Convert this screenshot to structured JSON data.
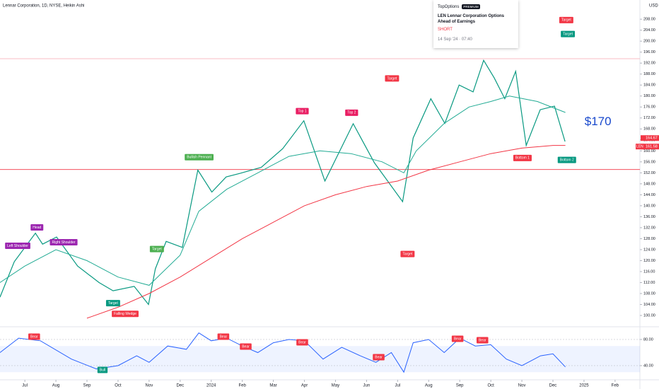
{
  "header": {
    "title": "Lennar Corporation, 1D, NYSE, Heikin Ashi",
    "currency": "USD"
  },
  "news": {
    "source": "TopOptions",
    "badge": "PREMIUM",
    "headline": "LEN Lennar Corporation Options Ahead of Earnings",
    "side": "SHORT",
    "date": "14 Sep '24 · 07:40"
  },
  "chart_data": [
    {
      "type": "line",
      "xlim": [
        -0.8,
        19.8
      ],
      "ylim": [
        96.4,
        215
      ],
      "xticks": [
        {
          "value": 0,
          "label": "Jul"
        },
        {
          "value": 1,
          "label": "Aug"
        },
        {
          "value": 2,
          "label": "Sep"
        },
        {
          "value": 3,
          "label": "Oct"
        },
        {
          "value": 4,
          "label": "Nov"
        },
        {
          "value": 5,
          "label": "Dec"
        },
        {
          "value": 6,
          "label": "2024"
        },
        {
          "value": 7,
          "label": "Feb"
        },
        {
          "value": 8,
          "label": "Mar"
        },
        {
          "value": 9,
          "label": "Apr"
        },
        {
          "value": 10,
          "label": "May"
        },
        {
          "value": 11,
          "label": "Jun"
        },
        {
          "value": 12,
          "label": "Jul"
        },
        {
          "value": 13,
          "label": "Aug"
        },
        {
          "value": 14,
          "label": "Sep"
        },
        {
          "value": 15,
          "label": "Oct"
        },
        {
          "value": 16,
          "label": "Nov"
        },
        {
          "value": 17,
          "label": "Dec"
        },
        {
          "value": 18,
          "label": "2025"
        },
        {
          "value": 19,
          "label": "Feb"
        }
      ],
      "yticks": [
        {
          "value": 208,
          "label": "208.00"
        },
        {
          "value": 204,
          "label": "204.00"
        },
        {
          "value": 200,
          "label": "200.00"
        },
        {
          "value": 196,
          "label": "196.00"
        },
        {
          "value": 192,
          "label": "192.00"
        },
        {
          "value": 188,
          "label": "188.00"
        },
        {
          "value": 184,
          "label": "184.00"
        },
        {
          "value": 180,
          "label": "180.00"
        },
        {
          "value": 176,
          "label": "176.00"
        },
        {
          "value": 172,
          "label": "172.00"
        },
        {
          "value": 168,
          "label": "168.00"
        },
        {
          "value": 164,
          "label": "164.00"
        },
        {
          "value": 160,
          "label": "160.00"
        },
        {
          "value": 156,
          "label": "156.00"
        },
        {
          "value": 152,
          "label": "152.00"
        },
        {
          "value": 148,
          "label": "148.00"
        },
        {
          "value": 144,
          "label": "144.00"
        },
        {
          "value": 140,
          "label": "140.00"
        },
        {
          "value": 136,
          "label": "136.00"
        },
        {
          "value": 132,
          "label": "132.00"
        },
        {
          "value": 128,
          "label": "128.00"
        },
        {
          "value": 124,
          "label": "124.00"
        },
        {
          "value": 120,
          "label": "120.00"
        },
        {
          "value": 116,
          "label": "116.00"
        },
        {
          "value": 112,
          "label": "112.00"
        },
        {
          "value": 108,
          "label": "108.00"
        },
        {
          "value": 104,
          "label": "104.00"
        },
        {
          "value": 100,
          "label": "100.00"
        }
      ],
      "grid": false,
      "series": [
        {
          "color": "#089981",
          "width": 1.2,
          "x": [
            -0.8,
            -0.34,
            0.34,
            0.57,
            1.02,
            1.7,
            2.39,
            2.84,
            3.52,
            3.98,
            4.2,
            4.55,
            5.07,
            5.57,
            6.02,
            6.48,
            6.93,
            7.61,
            8.3,
            8.98,
            9.66,
            10.57,
            11.25,
            12.16,
            12.5,
            13.07,
            13.52,
            13.98,
            14.43,
            14.77,
            15.11,
            15.45,
            15.8,
            16.14,
            16.59,
            17.05,
            17.39
          ],
          "values": [
            106.7,
            119.6,
            130,
            126,
            128.6,
            118,
            112,
            109,
            110.6,
            104,
            117,
            127,
            124.8,
            153,
            145,
            150.5,
            151.8,
            154,
            160.8,
            171,
            149,
            169.9,
            155.7,
            141.5,
            164.7,
            179,
            170,
            184,
            181.5,
            193,
            186.6,
            179,
            189,
            162,
            175,
            176.3,
            163.4
          ]
        },
        {
          "color": "#22ab94",
          "width": 1,
          "x": [
            -0.8,
            0,
            1,
            2,
            3,
            4,
            5,
            5.6,
            6.5,
            7.5,
            8.5,
            9.5,
            10.5,
            11.5,
            12.2,
            12.6,
            13.5,
            14.3,
            15,
            15.6,
            16.5,
            17.4
          ],
          "values": [
            112,
            118,
            124,
            120,
            114,
            111,
            122,
            138,
            146,
            152,
            158,
            160,
            159,
            156,
            152,
            160,
            170,
            176,
            178,
            180,
            178,
            174
          ]
        },
        {
          "color": "#f23645",
          "width": 1,
          "x": [
            2,
            3,
            4,
            5,
            6,
            7,
            8,
            9,
            10,
            11,
            12,
            13,
            14,
            15,
            16,
            17,
            17.4
          ],
          "values": [
            99,
            103,
            108,
            114,
            121,
            128,
            134,
            140,
            144,
            147,
            149,
            153,
            156,
            159,
            161,
            162,
            162
          ]
        }
      ],
      "hlines": [
        {
          "value": 153.2,
          "color": "#f23645"
        },
        {
          "value": 193.6,
          "color": "#f7a9b0"
        }
      ],
      "price_labels": [
        164.67,
        161.58
      ],
      "symbol": "LEN",
      "callout": {
        "text": "$170",
        "x": 18.45,
        "y": 170.5
      },
      "annotations": [
        {
          "text": "Head",
          "x": 0.39,
          "y": 132.1,
          "color": "#9c27b0"
        },
        {
          "text": "Left Shoulder",
          "x": -0.23,
          "y": 125.4,
          "color": "#9c27b0"
        },
        {
          "text": "Right Shoulder",
          "x": 1.25,
          "y": 126.7,
          "color": "#9c27b0"
        },
        {
          "text": "Target",
          "x": 2.84,
          "y": 104.5,
          "color": "#089981"
        },
        {
          "text": "Falling Wedge",
          "x": 3.23,
          "y": 100.6,
          "color": "#f23645"
        },
        {
          "text": "Target",
          "x": 4.25,
          "y": 124.2,
          "color": "#4caf50"
        },
        {
          "text": "Bullish Pennant",
          "x": 5.61,
          "y": 157.7,
          "color": "#4caf50"
        },
        {
          "text": "Top 1",
          "x": 8.93,
          "y": 174.5,
          "color": "#e91e63"
        },
        {
          "text": "Top 2",
          "x": 10.52,
          "y": 173.9,
          "color": "#e91e63"
        },
        {
          "text": "Target",
          "x": 11.82,
          "y": 186.4,
          "color": "#f23645"
        },
        {
          "text": "Target",
          "x": 12.32,
          "y": 122.4,
          "color": "#f23645"
        },
        {
          "text": "Target",
          "x": 17.43,
          "y": 207.7,
          "color": "#f23645"
        },
        {
          "text": "Target",
          "x": 17.48,
          "y": 202.6,
          "color": "#089981"
        },
        {
          "text": "Bottom 1",
          "x": 16.02,
          "y": 157.4,
          "color": "#f23645"
        },
        {
          "text": "Bottom 2",
          "x": 17.45,
          "y": 156.7,
          "color": "#089981"
        }
      ]
    },
    {
      "type": "line",
      "xlim": [
        -0.8,
        19.8
      ],
      "ylim": [
        20.5,
        96.2
      ],
      "yticks": [
        {
          "value": 80,
          "label": "80.00"
        },
        {
          "value": 40,
          "label": "40.00"
        }
      ],
      "band": [
        30,
        70
      ],
      "series": [
        {
          "color": "#2962ff",
          "width": 1,
          "x": [
            -0.8,
            -0.2,
            0.5,
            1.5,
            2.3,
            3,
            3.6,
            4,
            4.6,
            5.2,
            5.6,
            6,
            6.5,
            7,
            7.5,
            8,
            8.5,
            9,
            9.6,
            10.2,
            10.8,
            11.3,
            11.8,
            12.2,
            12.5,
            13,
            13.5,
            14,
            14.5,
            15,
            15.5,
            16,
            16.6,
            17,
            17.4
          ],
          "values": [
            60,
            82,
            78,
            50,
            35,
            40,
            55,
            45,
            70,
            65,
            90,
            78,
            82,
            70,
            60,
            75,
            80,
            78,
            50,
            68,
            55,
            45,
            60,
            30,
            75,
            80,
            60,
            82,
            70,
            72,
            50,
            40,
            55,
            58,
            38
          ]
        }
      ],
      "annotations": [
        {
          "text": "Bear",
          "x": 0.3,
          "y": 84.3,
          "color": "#f23645"
        },
        {
          "text": "Bull",
          "x": 2.5,
          "y": 33.5,
          "color": "#089981"
        },
        {
          "text": "Bear",
          "x": 6.39,
          "y": 84.3,
          "color": "#f23645"
        },
        {
          "text": "Bear",
          "x": 7.11,
          "y": 69.2,
          "color": "#f23645"
        },
        {
          "text": "Bear",
          "x": 8.93,
          "y": 75.7,
          "color": "#f23645"
        },
        {
          "text": "Bear",
          "x": 11.39,
          "y": 53,
          "color": "#f23645"
        },
        {
          "text": "Bear",
          "x": 13.93,
          "y": 81.1,
          "color": "#f23645"
        },
        {
          "text": "Bear",
          "x": 14.73,
          "y": 78.9,
          "color": "#f23645"
        }
      ]
    }
  ]
}
